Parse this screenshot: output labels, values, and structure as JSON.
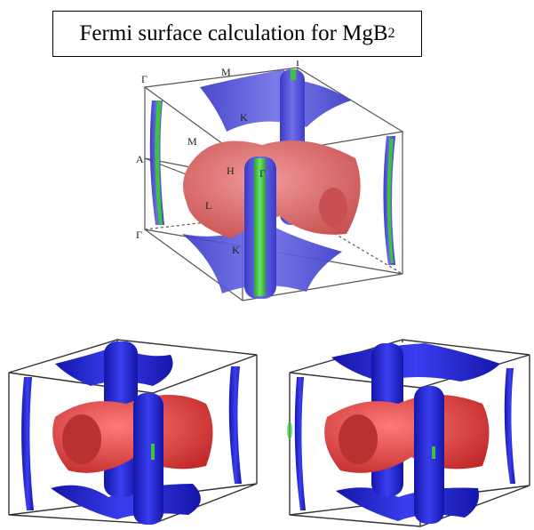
{
  "title": {
    "prefix": "Fermi surface calculation for MgB",
    "subscript": "2"
  },
  "top_panel": {
    "point_labels": {
      "gamma_top": "Γ",
      "m_top": "M",
      "gamma_corner": "Γ",
      "k_upper": "K",
      "m_left": "M",
      "a": "A",
      "h": "H",
      "l": "L",
      "gamma_center": "Γ",
      "gamma_bottom": "Γ",
      "k_lower": "K"
    }
  },
  "colors": {
    "blue_sheet": "#4a4ad8",
    "green_sheet": "#3cc43c",
    "red_sheet": "#d96464",
    "deep_blue": "#1f23d4",
    "deep_red": "#e23c3c"
  }
}
